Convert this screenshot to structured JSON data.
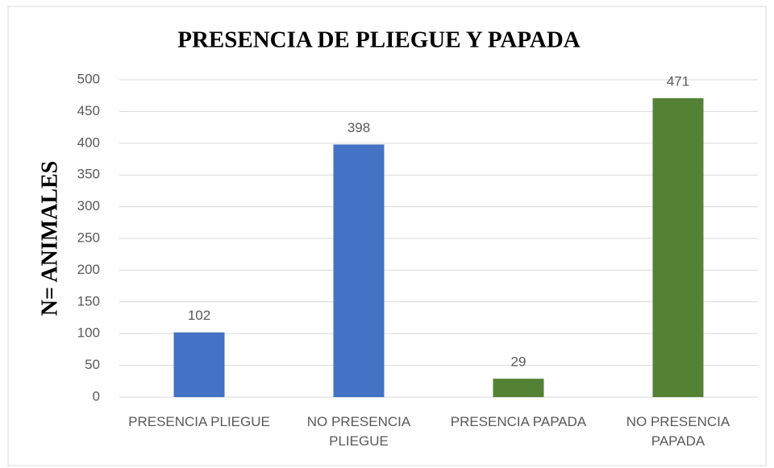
{
  "chart_data": {
    "type": "bar",
    "title": "PRESENCIA DE PLIEGUE Y PAPADA",
    "ylabel": "N= ANIMALES",
    "categories": [
      "PRESENCIA PLIEGUE",
      "NO PRESENCIA PLIEGUE",
      "PRESENCIA PAPADA",
      "NO PRESENCIA PAPADA"
    ],
    "values": [
      102,
      398,
      29,
      471
    ],
    "colors": [
      "#4472c4",
      "#4472c4",
      "#548235",
      "#548235"
    ],
    "ylim": [
      0,
      500
    ],
    "yticks": [
      0,
      50,
      100,
      150,
      200,
      250,
      300,
      350,
      400,
      450,
      500
    ],
    "grid": true
  }
}
